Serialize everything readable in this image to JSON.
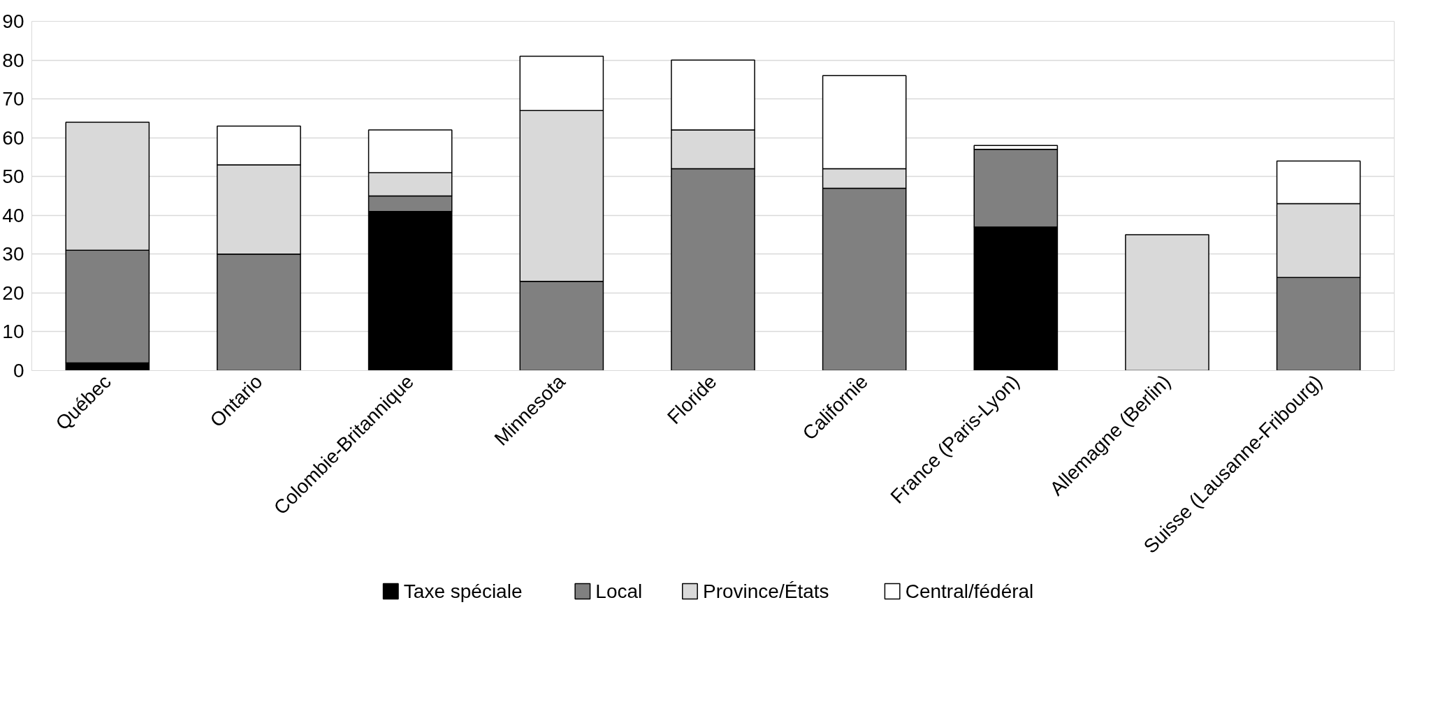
{
  "chart_data": {
    "type": "bar",
    "stacked": true,
    "categories": [
      "Québec",
      "Ontario",
      "Colombie-Britannique",
      "Minnesota",
      "Floride",
      "Californie",
      "France (Paris-Lyon)",
      "Allemagne (Berlin)",
      "Suisse (Lausanne-Fribourg)"
    ],
    "series": [
      {
        "name": "Taxe spéciale",
        "color": "#000000",
        "values": [
          2,
          null,
          41,
          null,
          null,
          null,
          37,
          null,
          null
        ]
      },
      {
        "name": "Local",
        "color": "#808080",
        "values": [
          29,
          30,
          4,
          23,
          52,
          47,
          20,
          null,
          24
        ]
      },
      {
        "name": "Province/États",
        "color": "#d9d9d9",
        "values": [
          33,
          23,
          6,
          44,
          10,
          5,
          null,
          35,
          19
        ]
      },
      {
        "name": "Central/fédéral",
        "color": "#ffffff",
        "values": [
          null,
          10,
          11,
          14,
          18,
          24,
          1,
          null,
          11
        ]
      }
    ],
    "ylim": [
      0,
      90
    ],
    "yticks": [
      0,
      10,
      20,
      30,
      40,
      50,
      60,
      70,
      80,
      90
    ],
    "grid": "y",
    "legend": "bottom"
  }
}
